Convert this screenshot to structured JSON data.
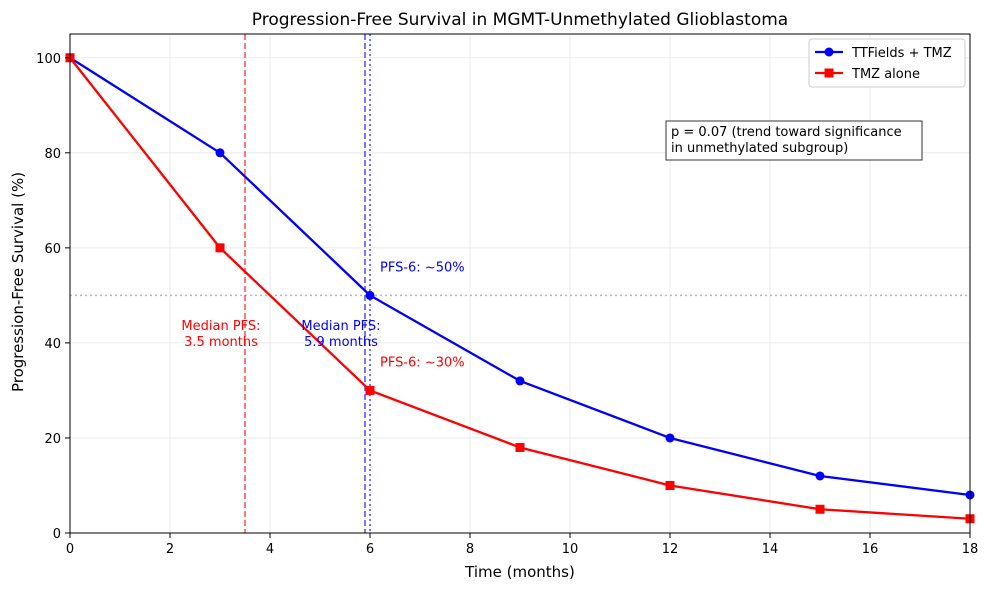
{
  "chart_data": {
    "type": "line",
    "title": "Progression-Free Survival in MGMT-Unmethylated Glioblastoma",
    "xlabel": "Time (months)",
    "ylabel": "Progression-Free Survival (%)",
    "xlim": [
      0,
      18
    ],
    "ylim": [
      0,
      105
    ],
    "xticks": [
      0,
      2,
      4,
      6,
      8,
      10,
      12,
      14,
      16,
      18
    ],
    "yticks": [
      0,
      20,
      40,
      60,
      80,
      100
    ],
    "grid": true,
    "legend_position": "top-right",
    "x": [
      0,
      3,
      6,
      9,
      12,
      15,
      18
    ],
    "series": [
      {
        "name": "TTFields + TMZ",
        "color": "#0000ff",
        "marker": "circle",
        "values": [
          100,
          80,
          50,
          32,
          20,
          12,
          8
        ]
      },
      {
        "name": "TMZ alone",
        "color": "#ff0000",
        "marker": "square",
        "values": [
          100,
          60,
          30,
          18,
          10,
          5,
          3
        ]
      }
    ],
    "reference_lines": [
      {
        "axis": "x",
        "value": 3.5,
        "color": "#ff0000",
        "style": "dashed"
      },
      {
        "axis": "x",
        "value": 5.9,
        "color": "#0000ff",
        "style": "dashed"
      },
      {
        "axis": "x",
        "value": 6,
        "color": "#0000ff",
        "style": "dotted"
      },
      {
        "axis": "y",
        "value": 50,
        "color": "#808080",
        "style": "dotted"
      }
    ],
    "annotations": [
      {
        "lines": [
          "Median PFS:",
          "3.5 months"
        ],
        "color": "#ff0000",
        "x": 3.5,
        "y": 41.5,
        "anchor": "end"
      },
      {
        "lines": [
          "Median PFS:",
          "5.9 months"
        ],
        "color": "#0000ff",
        "x": 5.9,
        "y": 41.5,
        "anchor": "end"
      },
      {
        "lines": [
          "PFS-6: ~50%"
        ],
        "color": "#0000ff",
        "x": 6.2,
        "y": 55,
        "anchor": "start"
      },
      {
        "lines": [
          "PFS-6: ~30%"
        ],
        "color": "#ff0000",
        "x": 6.2,
        "y": 35,
        "anchor": "start"
      }
    ],
    "textbox": {
      "lines": [
        "p = 0.07 (trend toward significance",
        "in unmethylated subgroup)"
      ]
    }
  }
}
